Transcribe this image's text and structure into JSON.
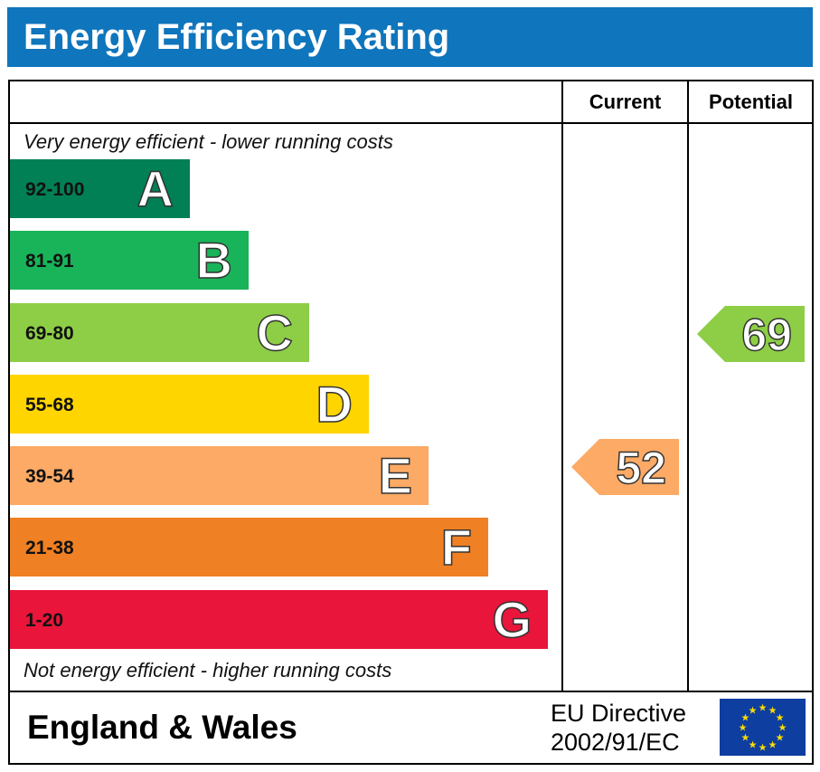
{
  "chart_data": {
    "type": "bar",
    "title": "Energy Efficiency Rating",
    "columns": [
      "Current",
      "Potential"
    ],
    "top_note": "Very energy efficient - lower running costs",
    "bottom_note": "Not energy efficient - higher running costs",
    "bands": [
      {
        "letter": "A",
        "range": "92-100",
        "color": "#008054",
        "rank": 1
      },
      {
        "letter": "B",
        "range": "81-91",
        "color": "#19b459",
        "rank": 2
      },
      {
        "letter": "C",
        "range": "69-80",
        "color": "#8dce46",
        "rank": 3
      },
      {
        "letter": "D",
        "range": "55-68",
        "color": "#ffd500",
        "rank": 4
      },
      {
        "letter": "E",
        "range": "39-54",
        "color": "#fcaa65",
        "rank": 5
      },
      {
        "letter": "F",
        "range": "21-38",
        "color": "#ef8023",
        "rank": 6
      },
      {
        "letter": "G",
        "range": "1-20",
        "color": "#e9153b",
        "rank": 7
      }
    ],
    "current": {
      "value": "52",
      "band": "E",
      "color": "#fcaa65"
    },
    "potential": {
      "value": "69",
      "band": "C",
      "color": "#8dce46"
    }
  },
  "footer": {
    "region": "England & Wales",
    "directive_line1": "EU Directive",
    "directive_line2": "2002/91/EC"
  }
}
